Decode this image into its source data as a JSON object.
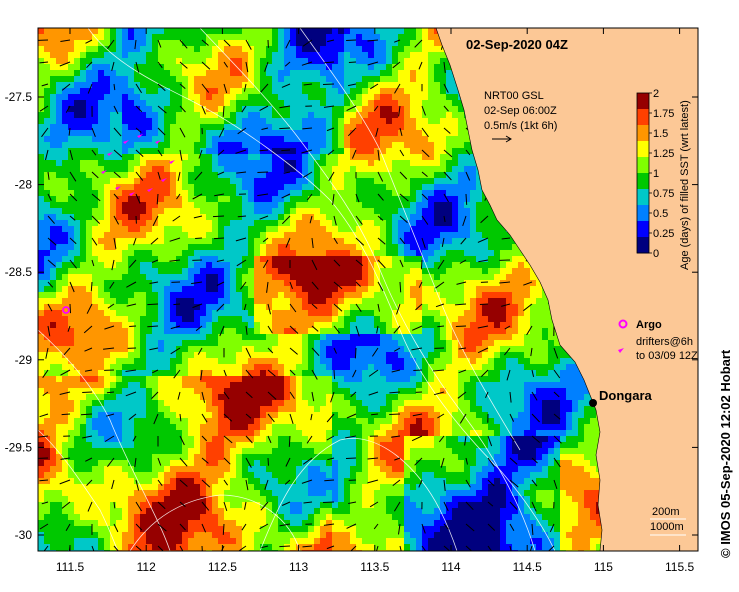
{
  "title": "02-Sep-2020 04Z",
  "current_info": {
    "line1": "NRT00 GSL",
    "line2": "02-Sep 06:00Z",
    "line3": "0.5m/s (1kt 6h)"
  },
  "colorbar": {
    "label": "Age (days) of filled SST (wrt latest)",
    "ticks": [
      "0",
      "0.25",
      "0.5",
      "0.75",
      "1",
      "1.25",
      "1.5",
      "1.75",
      "2"
    ],
    "colors": [
      "#00007f",
      "#0000ff",
      "#0080ff",
      "#00c8c8",
      "#00c800",
      "#80ff00",
      "#ffff00",
      "#ff9600",
      "#ff4000",
      "#960000"
    ]
  },
  "legend": {
    "argo_label": "Argo",
    "drifters_line1": "drifters@6h",
    "drifters_line2": "to 03/09 12Z",
    "argo_color": "#ff00ff"
  },
  "place": {
    "name": "Dongara"
  },
  "depth_legend": {
    "line1": "200m",
    "line2": "1000m"
  },
  "credit": "© IMOS 05-Sep-2020 12:02 Hobart",
  "axes": {
    "x_ticks": [
      "111.5",
      "112",
      "112.5",
      "113",
      "113.5",
      "114",
      "114.5",
      "115",
      "115.5"
    ],
    "y_ticks": [
      "-27.5",
      "-28",
      "-28.5",
      "-29",
      "-29.5",
      "-30"
    ]
  },
  "land_color": "#fcc896"
}
